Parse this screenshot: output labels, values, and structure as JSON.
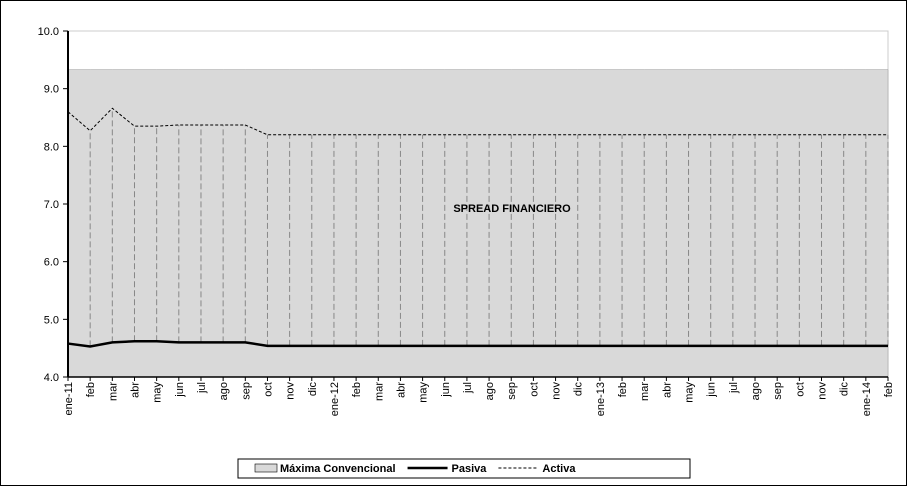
{
  "chart_data": {
    "type": "line",
    "categories": [
      "ene-11",
      "feb",
      "mar",
      "abr",
      "may",
      "jun",
      "jul",
      "ago",
      "sep",
      "oct",
      "nov",
      "dic",
      "ene-12",
      "feb",
      "mar",
      "abr",
      "may",
      "jun",
      "jul",
      "ago",
      "sep",
      "oct",
      "nov",
      "dic",
      "ene-13",
      "feb",
      "mar",
      "abr",
      "may",
      "jun",
      "jul",
      "ago",
      "sep",
      "oct",
      "nov",
      "dic",
      "ene-14",
      "feb"
    ],
    "series": [
      {
        "name": "Máxima Convencional",
        "color": "#d9d9d9",
        "style": "area",
        "values": [
          9.33,
          9.33,
          9.33,
          9.33,
          9.33,
          9.33,
          9.33,
          9.33,
          9.33,
          9.33,
          9.33,
          9.33,
          9.33,
          9.33,
          9.33,
          9.33,
          9.33,
          9.33,
          9.33,
          9.33,
          9.33,
          9.33,
          9.33,
          9.33,
          9.33,
          9.33,
          9.33,
          9.33,
          9.33,
          9.33,
          9.33,
          9.33,
          9.33,
          9.33,
          9.33,
          9.33,
          9.33,
          9.33
        ]
      },
      {
        "name": "Pasiva",
        "color": "#000000",
        "style": "solid",
        "values": [
          4.58,
          4.53,
          4.6,
          4.62,
          4.62,
          4.6,
          4.6,
          4.6,
          4.6,
          4.54,
          4.54,
          4.54,
          4.54,
          4.54,
          4.54,
          4.54,
          4.54,
          4.54,
          4.54,
          4.54,
          4.54,
          4.54,
          4.54,
          4.54,
          4.54,
          4.54,
          4.54,
          4.54,
          4.54,
          4.54,
          4.54,
          4.54,
          4.54,
          4.54,
          4.54,
          4.54,
          4.54,
          4.54
        ]
      },
      {
        "name": "Activa",
        "color": "#000000",
        "style": "dashed",
        "values": [
          8.6,
          8.27,
          8.66,
          8.35,
          8.35,
          8.37,
          8.37,
          8.37,
          8.37,
          8.2,
          8.2,
          8.2,
          8.2,
          8.2,
          8.2,
          8.2,
          8.2,
          8.2,
          8.2,
          8.2,
          8.2,
          8.2,
          8.2,
          8.2,
          8.2,
          8.2,
          8.2,
          8.2,
          8.2,
          8.2,
          8.2,
          8.2,
          8.2,
          8.2,
          8.2,
          8.2,
          8.2,
          8.2
        ]
      }
    ],
    "annotation": "SPREAD FINANCIERO",
    "ylim": [
      4,
      10
    ],
    "yticks": [
      {
        "value": 4,
        "label": "4.0"
      },
      {
        "value": 5,
        "label": "5.0"
      },
      {
        "value": 6,
        "label": "6.0"
      },
      {
        "value": 7,
        "label": "7.0"
      },
      {
        "value": 8,
        "label": "8.0"
      },
      {
        "value": 9,
        "label": "9.0"
      },
      {
        "value": 10,
        "label": "10.0"
      }
    ],
    "legend": "bottom"
  }
}
